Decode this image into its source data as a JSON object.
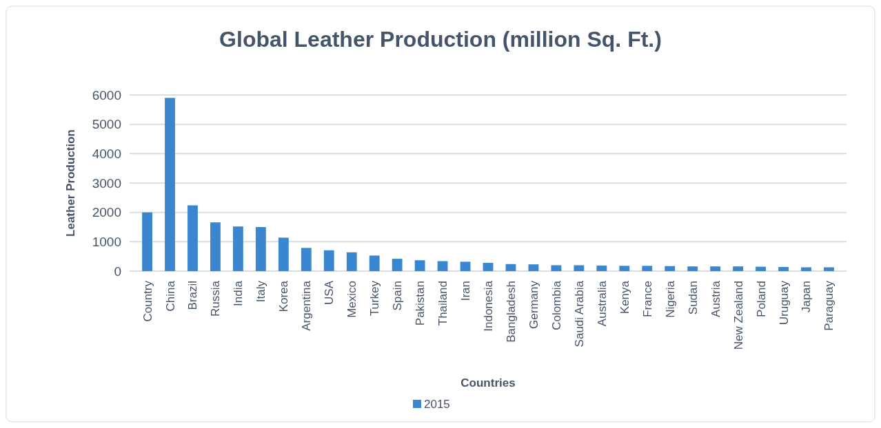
{
  "chart_data": {
    "type": "bar",
    "title": "Global Leather Production (million Sq. Ft.)",
    "xlabel": "Countries",
    "ylabel": "Leather Production",
    "categories": [
      "Country",
      "China",
      "Brazil",
      "Russia",
      "India",
      "Italy",
      "Korea",
      "Argentina",
      "USA",
      "Mexico",
      "Turkey",
      "Spain",
      "Pakistan",
      "Thailand",
      "Iran",
      "Indonesia",
      "Bangladesh",
      "Germany",
      "Colombia",
      "Saudi Arabia",
      "Australia",
      "Kenya",
      "France",
      "Nigeria",
      "Sudan",
      "Austria",
      "New Zealand",
      "Poland",
      "Uruguay",
      "Japan",
      "Paraguay"
    ],
    "series": [
      {
        "name": "2015",
        "color": "#3a86d0",
        "values": [
          2000,
          5900,
          2240,
          1660,
          1520,
          1500,
          1140,
          790,
          710,
          640,
          530,
          420,
          370,
          340,
          320,
          280,
          240,
          230,
          200,
          200,
          190,
          180,
          180,
          170,
          160,
          160,
          160,
          150,
          140,
          130,
          130
        ]
      }
    ],
    "ylim": [
      0,
      6000
    ],
    "yticks": [
      0,
      1000,
      2000,
      3000,
      4000,
      5000,
      6000
    ],
    "grid": "y",
    "legend": "bottom"
  }
}
